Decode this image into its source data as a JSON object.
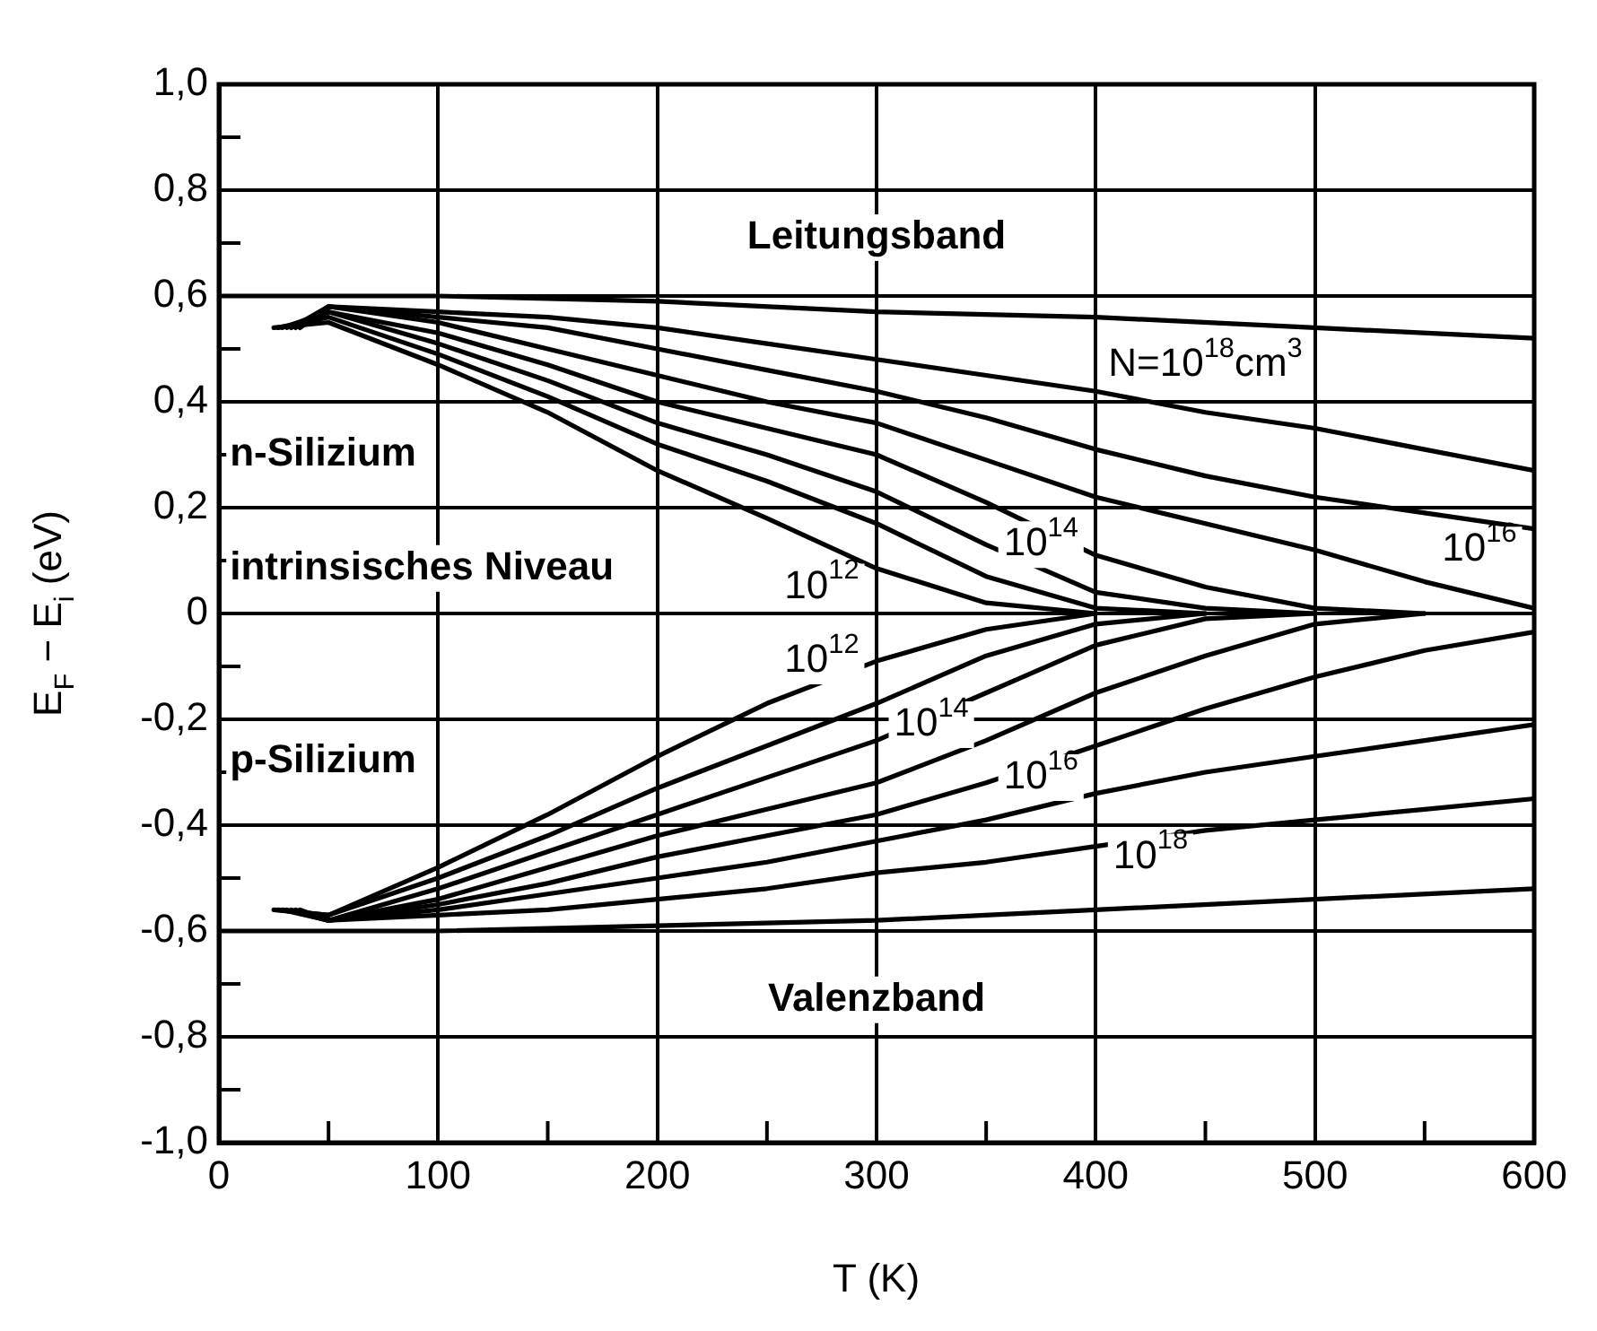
{
  "chart_data": {
    "type": "line",
    "xlabel": "T (K)",
    "ylabel": "E$_{F}$ − E$_{i}$ (eV)",
    "xlim": [
      0,
      600
    ],
    "ylim": [
      -1,
      1
    ],
    "xticks": [
      0,
      {
        "value": 50,
        "label": null
      },
      100,
      {
        "value": 150,
        "label": null
      },
      200,
      {
        "value": 250,
        "label": null
      },
      300,
      {
        "value": 350,
        "label": null
      },
      400,
      {
        "value": 450,
        "label": null
      },
      500,
      {
        "value": 550,
        "label": null
      },
      600
    ],
    "yticks": [
      {
        "value": -1,
        "label": "-1,0"
      },
      {
        "value": -0.9,
        "label": null
      },
      {
        "value": -0.8,
        "label": "-0,8"
      },
      {
        "value": -0.7,
        "label": null
      },
      {
        "value": -0.6,
        "label": "-0,6"
      },
      {
        "value": -0.5,
        "label": null
      },
      {
        "value": -0.4,
        "label": "-0,4"
      },
      {
        "value": -0.3,
        "label": null
      },
      {
        "value": -0.2,
        "label": "-0,2"
      },
      {
        "value": -0.1,
        "label": null
      },
      0,
      {
        "value": 0.1,
        "label": null
      },
      {
        "value": 0.2,
        "label": "0,2"
      },
      {
        "value": 0.3,
        "label": null
      },
      {
        "value": 0.4,
        "label": "0,4"
      },
      {
        "value": 0.5,
        "label": null
      },
      {
        "value": 0.6,
        "label": "0,6"
      },
      {
        "value": 0.7,
        "label": null
      },
      {
        "value": 0.8,
        "label": "0,8"
      },
      {
        "value": 0.9,
        "label": null
      },
      {
        "value": 1,
        "label": "1,0"
      }
    ],
    "grid": true,
    "legend": false,
    "marker": "none",
    "line_style": "solid",
    "series": [
      {
        "color": "#000000",
        "x": [
          0,
          100,
          200,
          300,
          400,
          500,
          600
        ],
        "values": [
          0.6,
          0.6,
          0.59,
          0.57,
          0.56,
          0.54,
          0.52
        ]
      },
      {
        "color": "#000000",
        "x": [
          0,
          100,
          200,
          300,
          400,
          500,
          600
        ],
        "values": [
          -0.6,
          -0.6,
          -0.59,
          -0.58,
          -0.56,
          -0.54,
          -0.52
        ]
      },
      {
        "color": "#000000",
        "x": [
          25,
          50,
          100,
          150,
          200,
          250,
          300,
          350,
          400
        ],
        "values": [
          0.54,
          0.55,
          0.47,
          0.38,
          0.27,
          0.18,
          0.085,
          0.02,
          0
        ]
      },
      {
        "color": "#000000",
        "x": [
          27,
          50,
          100,
          150,
          200,
          250,
          300,
          350,
          400,
          450
        ],
        "values": [
          0.54,
          0.56,
          0.49,
          0.41,
          0.32,
          0.25,
          0.17,
          0.07,
          0.01,
          0
        ]
      },
      {
        "color": "#000000",
        "x": [
          29,
          50,
          100,
          150,
          200,
          250,
          300,
          350,
          400,
          450,
          500
        ],
        "values": [
          0.54,
          0.57,
          0.51,
          0.44,
          0.36,
          0.3,
          0.23,
          0.13,
          0.04,
          0.01,
          0
        ]
      },
      {
        "color": "#000000",
        "x": [
          31,
          50,
          100,
          150,
          200,
          250,
          300,
          350,
          400,
          450,
          500,
          550
        ],
        "values": [
          0.54,
          0.57,
          0.53,
          0.47,
          0.4,
          0.35,
          0.3,
          0.21,
          0.11,
          0.05,
          0.01,
          0
        ]
      },
      {
        "color": "#000000",
        "x": [
          33,
          50,
          100,
          150,
          200,
          250,
          300,
          350,
          400,
          450,
          500,
          550,
          600
        ],
        "values": [
          0.54,
          0.58,
          0.55,
          0.5,
          0.45,
          0.4,
          0.36,
          0.29,
          0.22,
          0.17,
          0.12,
          0.06,
          0.01
        ]
      },
      {
        "color": "#000000",
        "x": [
          35,
          50,
          100,
          150,
          200,
          250,
          300,
          350,
          400,
          450,
          500,
          550,
          600
        ],
        "values": [
          0.54,
          0.58,
          0.56,
          0.54,
          0.5,
          0.46,
          0.42,
          0.37,
          0.31,
          0.26,
          0.22,
          0.19,
          0.16
        ]
      },
      {
        "color": "#000000",
        "x": [
          37,
          50,
          100,
          150,
          200,
          250,
          300,
          350,
          400,
          450,
          500,
          550,
          600
        ],
        "values": [
          0.54,
          0.58,
          0.57,
          0.56,
          0.54,
          0.51,
          0.48,
          0.45,
          0.42,
          0.38,
          0.35,
          0.31,
          0.27
        ]
      },
      {
        "color": "#000000",
        "x": [
          25,
          50,
          100,
          150,
          200,
          250,
          300,
          350,
          400
        ],
        "values": [
          -0.56,
          -0.57,
          -0.48,
          -0.38,
          -0.27,
          -0.17,
          -0.09,
          -0.03,
          0
        ]
      },
      {
        "color": "#000000",
        "x": [
          27,
          50,
          100,
          150,
          200,
          250,
          300,
          350,
          400,
          450
        ],
        "values": [
          -0.56,
          -0.57,
          -0.5,
          -0.42,
          -0.33,
          -0.25,
          -0.17,
          -0.08,
          -0.02,
          0
        ]
      },
      {
        "color": "#000000",
        "x": [
          29,
          50,
          100,
          150,
          200,
          250,
          300,
          350,
          400,
          450,
          500
        ],
        "values": [
          -0.56,
          -0.58,
          -0.52,
          -0.45,
          -0.38,
          -0.31,
          -0.24,
          -0.15,
          -0.06,
          -0.01,
          0
        ]
      },
      {
        "color": "#000000",
        "x": [
          31,
          50,
          100,
          150,
          200,
          250,
          300,
          350,
          400,
          450,
          500,
          550
        ],
        "values": [
          -0.56,
          -0.58,
          -0.54,
          -0.48,
          -0.42,
          -0.37,
          -0.32,
          -0.24,
          -0.15,
          -0.08,
          -0.02,
          0
        ]
      },
      {
        "color": "#000000",
        "x": [
          33,
          50,
          100,
          150,
          200,
          250,
          300,
          350,
          400,
          450,
          500,
          550,
          600
        ],
        "values": [
          -0.56,
          -0.58,
          -0.55,
          -0.51,
          -0.46,
          -0.42,
          -0.38,
          -0.32,
          -0.25,
          -0.18,
          -0.12,
          -0.07,
          -0.035
        ]
      },
      {
        "color": "#000000",
        "x": [
          35,
          50,
          100,
          150,
          200,
          250,
          300,
          350,
          400,
          450,
          500,
          550,
          600
        ],
        "values": [
          -0.56,
          -0.58,
          -0.56,
          -0.53,
          -0.5,
          -0.47,
          -0.43,
          -0.39,
          -0.34,
          -0.3,
          -0.27,
          -0.24,
          -0.21
        ]
      },
      {
        "color": "#000000",
        "x": [
          37,
          50,
          100,
          150,
          200,
          250,
          300,
          350,
          400,
          450,
          500,
          550,
          600
        ],
        "values": [
          -0.56,
          -0.58,
          -0.57,
          -0.56,
          -0.54,
          -0.52,
          -0.49,
          -0.47,
          -0.44,
          -0.41,
          -0.39,
          -0.37,
          -0.35
        ]
      }
    ],
    "annotations": [
      "Leitungsband",
      "n-Silizium",
      "intrinsisches Niveau",
      "p-Silizium",
      "Valenzband",
      "10$^{12}$",
      "10$^{14}$",
      "10$^{16}$",
      "N=10$^{18}$cm$^{3}$",
      "10$^{12}$",
      "10$^{14}$",
      "10$^{16}$",
      "10$^{18}$"
    ]
  }
}
